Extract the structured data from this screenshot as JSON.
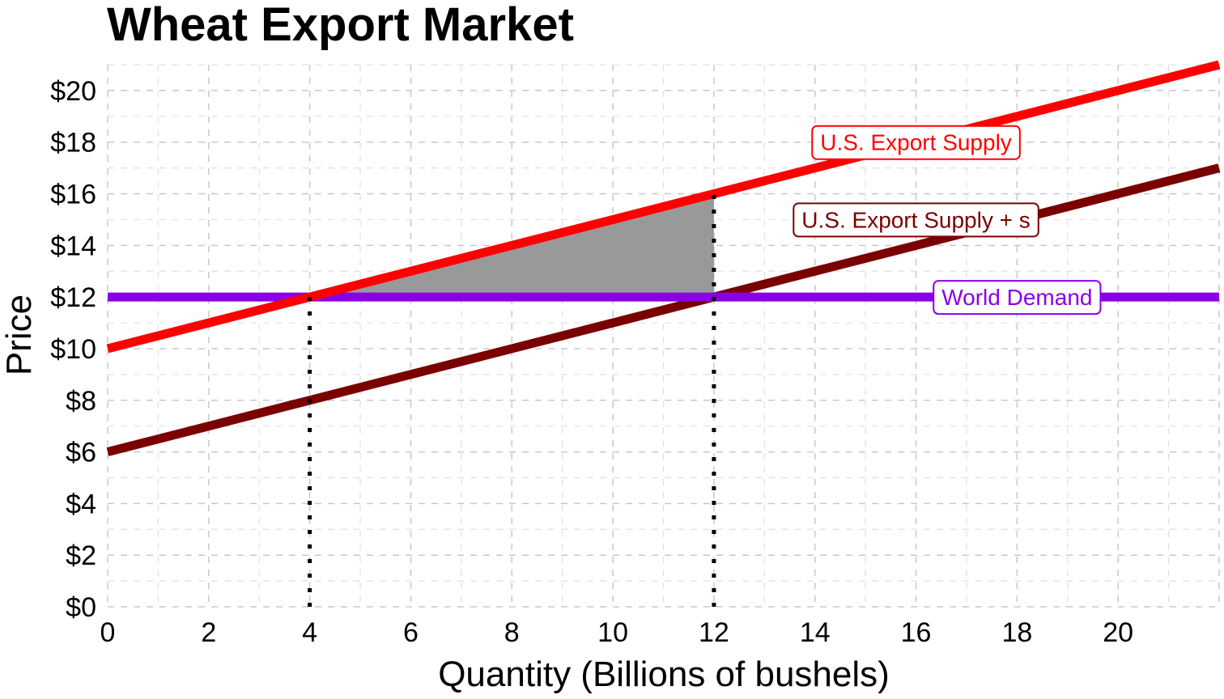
{
  "chart_data": {
    "type": "line",
    "title": "Wheat Export Market",
    "xlabel": "Quantity (Billions of bushels)",
    "ylabel": "Price",
    "xlim": [
      0,
      22
    ],
    "ylim": [
      0,
      21
    ],
    "x_ticks": [
      0,
      2,
      4,
      6,
      8,
      10,
      12,
      14,
      16,
      18,
      20
    ],
    "y_ticks": [
      0,
      2,
      4,
      6,
      8,
      10,
      12,
      14,
      16,
      18,
      20
    ],
    "x_tick_labels": [
      "0",
      "2",
      "4",
      "6",
      "8",
      "10",
      "12",
      "14",
      "16",
      "18",
      "20"
    ],
    "y_tick_labels": [
      "$0",
      "$2",
      "$4",
      "$6",
      "$8",
      "$10",
      "$12",
      "$14",
      "$16",
      "$18",
      "$20"
    ],
    "grid": true,
    "series": [
      {
        "name": "U.S. Export Supply",
        "color": "#ff0000",
        "x": [
          0,
          22
        ],
        "y": [
          10,
          21
        ],
        "label_at": [
          16,
          18
        ]
      },
      {
        "name": "U.S. Export Supply + s",
        "color": "#7a0000",
        "x": [
          0,
          22
        ],
        "y": [
          6,
          17
        ],
        "label_at": [
          16,
          15
        ]
      },
      {
        "name": "World Demand",
        "color": "#8a00e6",
        "x": [
          0,
          22
        ],
        "y": [
          12,
          12
        ],
        "label_at": [
          18,
          12
        ]
      }
    ],
    "shaded_area": {
      "color": "#999999",
      "points": [
        [
          4,
          12
        ],
        [
          12,
          16
        ],
        [
          12,
          12
        ]
      ]
    },
    "reference_lines": [
      {
        "x": 4,
        "y_from": 0,
        "y_to": 12,
        "style": "dotted"
      },
      {
        "x": 12,
        "y_from": 0,
        "y_to": 16,
        "style": "dotted"
      }
    ]
  }
}
